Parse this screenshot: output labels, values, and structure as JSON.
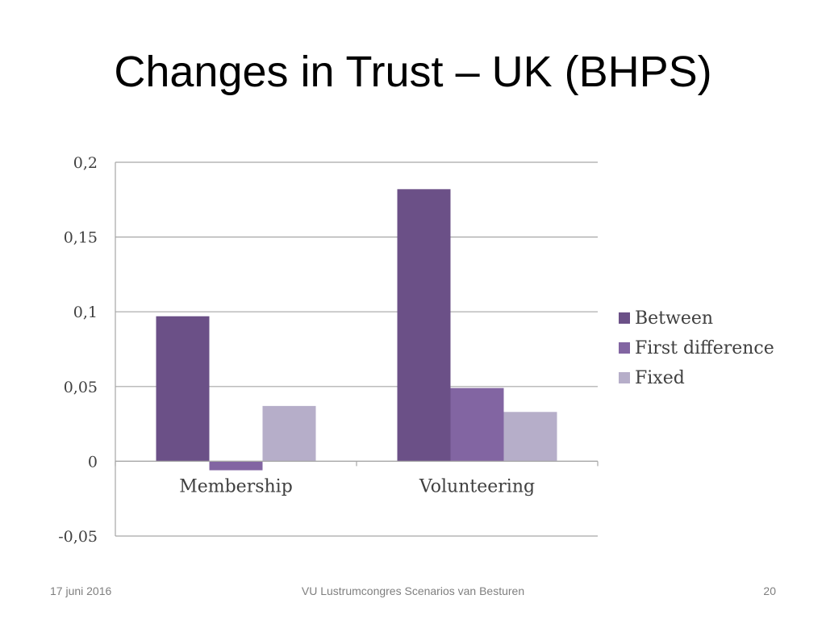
{
  "slide": {
    "title": "Changes in Trust – UK (BHPS)"
  },
  "footer": {
    "date": "17 juni 2016",
    "center": "VU Lustrumcongres Scenarios van Besturen",
    "page": "20"
  },
  "chart_data": {
    "type": "bar",
    "categories": [
      "Membership",
      "Volunteering"
    ],
    "series": [
      {
        "name": "Between",
        "values": [
          0.097,
          0.182
        ],
        "color": "#6b5087"
      },
      {
        "name": "First difference",
        "values": [
          -0.006,
          0.049
        ],
        "color": "#8265a2"
      },
      {
        "name": "Fixed",
        "values": [
          0.037,
          0.033
        ],
        "color": "#b6aec9"
      }
    ],
    "ylim": [
      -0.05,
      0.2
    ],
    "yticks": [
      0.2,
      0.15,
      0.1,
      0.05,
      0,
      -0.05
    ],
    "ytick_labels": [
      "0,2",
      "0,15",
      "0,1",
      "0,05",
      "0",
      "-0,05"
    ],
    "grid": true,
    "legend": "right",
    "xlabel": "",
    "ylabel": ""
  }
}
